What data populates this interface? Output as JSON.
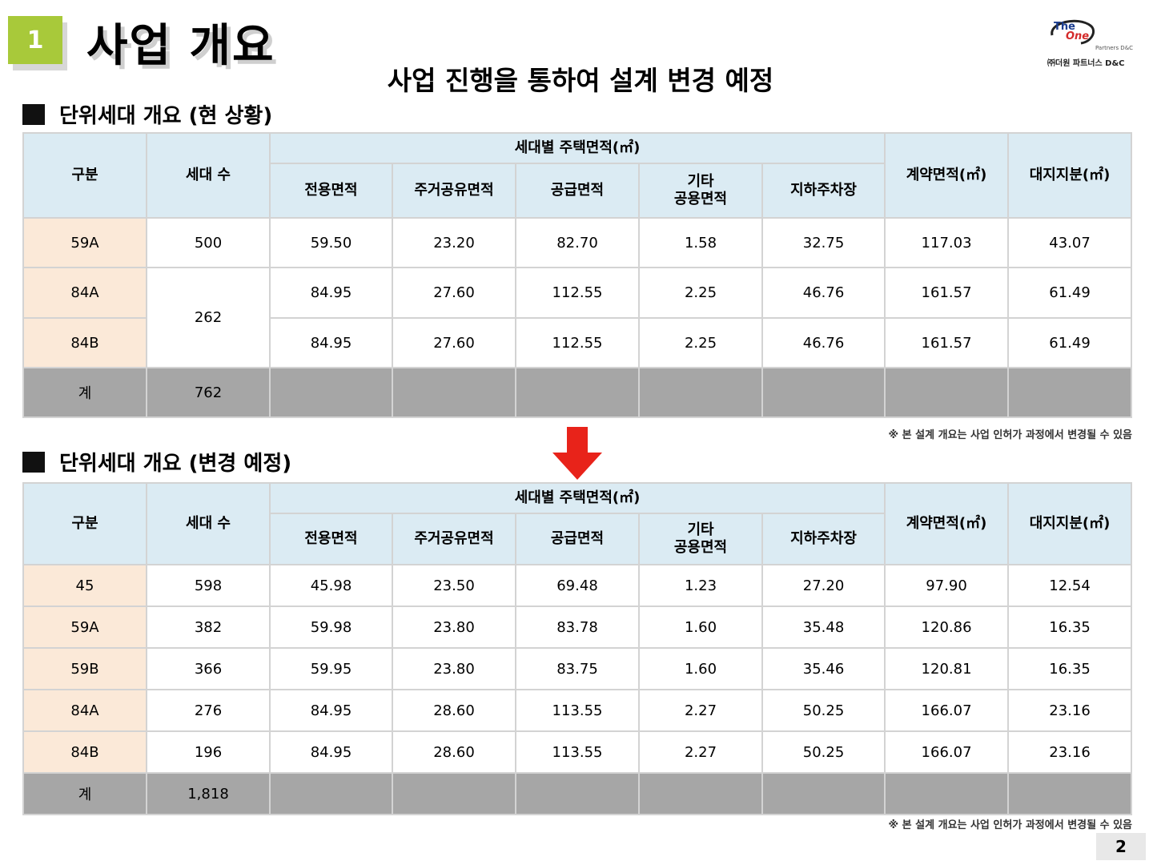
{
  "header": {
    "section_number": "1",
    "title": "사업 개요",
    "subtitle": "사업 진행을 통하여 설계 변경 예정"
  },
  "logo": {
    "the": "The",
    "one": "One",
    "partners": "Partners D&C",
    "korean": "㈜더원 파트너스 D&C"
  },
  "arrow_icon": "down-arrow-icon",
  "colors": {
    "badge": "#a8c93a",
    "header_cell": "#dbebf3",
    "category_cell": "#fbe9d8",
    "total_row": "#a6a6a6",
    "arrow": "#e8231a"
  },
  "columns": {
    "category": "구분",
    "households": "세대 수",
    "group": "세대별 주택면적(㎡)",
    "exclusive": "전용면적",
    "residential_common": "주거공유면적",
    "supply": "공급면적",
    "other_common": "기타\n공용면적",
    "underground_parking": "지하주차장",
    "contract": "계약면적(㎡)",
    "land_share": "대지지분(㎡)"
  },
  "table_current": {
    "heading": "단위세대 개요 (현 상황)",
    "rows": [
      {
        "type": "59A",
        "households": "500",
        "exclusive": "59.50",
        "residential_common": "23.20",
        "supply": "82.70",
        "other_common": "1.58",
        "parking": "32.75",
        "contract": "117.03",
        "land": "43.07"
      },
      {
        "type": "84A",
        "households": "262",
        "exclusive": "84.95",
        "residential_common": "27.60",
        "supply": "112.55",
        "other_common": "2.25",
        "parking": "46.76",
        "contract": "161.57",
        "land": "61.49"
      },
      {
        "type": "84B",
        "exclusive": "84.95",
        "residential_common": "27.60",
        "supply": "112.55",
        "other_common": "2.25",
        "parking": "46.76",
        "contract": "161.57",
        "land": "61.49"
      }
    ],
    "total_label": "계",
    "total_households": "762",
    "note": "※ 본 설계 개요는 사업 인허가 과정에서 변경될 수 있음"
  },
  "table_planned": {
    "heading": "단위세대 개요 (변경 예정)",
    "rows": [
      {
        "type": "45",
        "households": "598",
        "exclusive": "45.98",
        "residential_common": "23.50",
        "supply": "69.48",
        "other_common": "1.23",
        "parking": "27.20",
        "contract": "97.90",
        "land": "12.54"
      },
      {
        "type": "59A",
        "households": "382",
        "exclusive": "59.98",
        "residential_common": "23.80",
        "supply": "83.78",
        "other_common": "1.60",
        "parking": "35.48",
        "contract": "120.86",
        "land": "16.35"
      },
      {
        "type": "59B",
        "households": "366",
        "exclusive": "59.95",
        "residential_common": "23.80",
        "supply": "83.75",
        "other_common": "1.60",
        "parking": "35.46",
        "contract": "120.81",
        "land": "16.35"
      },
      {
        "type": "84A",
        "households": "276",
        "exclusive": "84.95",
        "residential_common": "28.60",
        "supply": "113.55",
        "other_common": "2.27",
        "parking": "50.25",
        "contract": "166.07",
        "land": "23.16"
      },
      {
        "type": "84B",
        "households": "196",
        "exclusive": "84.95",
        "residential_common": "28.60",
        "supply": "113.55",
        "other_common": "2.27",
        "parking": "50.25",
        "contract": "166.07",
        "land": "23.16"
      }
    ],
    "total_label": "계",
    "total_households": "1,818",
    "note": "※ 본 설계 개요는 사업 인허가 과정에서 변경될 수 있음"
  },
  "page_number": "2"
}
